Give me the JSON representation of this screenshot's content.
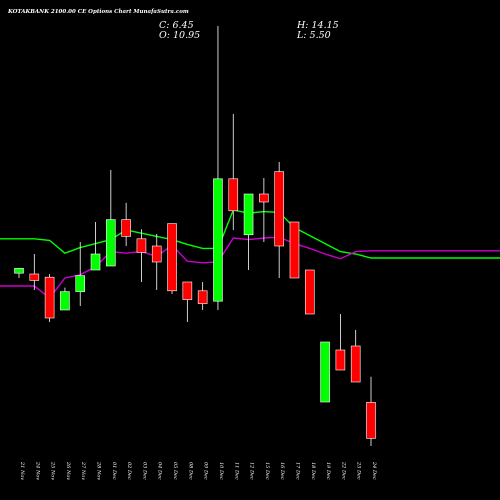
{
  "header": {
    "title": "KOTAKBANK 2100.00  CE Options  Chart MunafaSutra.com",
    "open": "O: 10.95",
    "high": "H: 14.15",
    "low": "L: 5.50",
    "close": "C: 6.45"
  },
  "colors": {
    "background": "#000000",
    "up": "#00ff00",
    "down": "#ff0000",
    "ema_fast": "#00ff00",
    "ema_slow": "#cc00cc",
    "wick": "#ffffff"
  },
  "chart_data": {
    "type": "candlestick",
    "title": "KOTAKBANK 2100.00  CE Options  Chart MunafaSutra.com",
    "categories": [
      "21 Nov",
      "24 Nov",
      "25 Nov",
      "26 Nov",
      "27 Nov",
      "28 Nov",
      "01 Dec",
      "02 Dec",
      "03 Dec",
      "04 Dec",
      "05 Dec",
      "08 Dec",
      "09 Dec",
      "10 Dec",
      "11 Dec",
      "12 Dec",
      "15 Dec",
      "16 Dec",
      "17 Dec",
      "18 Dec",
      "19 Dec",
      "22 Dec",
      "23 Dec",
      "24 Dec"
    ],
    "candles": [
      {
        "open": 27.1,
        "high": 27.7,
        "low": 26.5,
        "close": 27.7
      },
      {
        "open": 27.0,
        "high": 29.5,
        "low": 25.0,
        "close": 26.2
      },
      {
        "open": 26.6,
        "high": 27.0,
        "low": 21.0,
        "close": 21.5
      },
      {
        "open": 22.5,
        "high": 25.3,
        "low": 22.5,
        "close": 24.8
      },
      {
        "open": 24.8,
        "high": 31.0,
        "low": 23.0,
        "close": 26.8
      },
      {
        "open": 27.5,
        "high": 33.5,
        "low": 27.5,
        "close": 29.5
      },
      {
        "open": 28.0,
        "high": 40.0,
        "low": 28.0,
        "close": 33.8
      },
      {
        "open": 33.8,
        "high": 35.9,
        "low": 30.5,
        "close": 31.7
      },
      {
        "open": 31.4,
        "high": 32.6,
        "low": 26.0,
        "close": 29.7
      },
      {
        "open": 30.5,
        "high": 32.0,
        "low": 25.0,
        "close": 28.5
      },
      {
        "open": 33.3,
        "high": 33.3,
        "low": 24.5,
        "close": 24.9
      },
      {
        "open": 26.0,
        "high": 26.0,
        "low": 21.0,
        "close": 23.8
      },
      {
        "open": 24.9,
        "high": 26.0,
        "low": 22.5,
        "close": 23.3
      },
      {
        "open": 23.6,
        "high": 58.0,
        "low": 22.5,
        "close": 38.9
      },
      {
        "open": 38.9,
        "high": 47.0,
        "low": 32.5,
        "close": 34.9
      },
      {
        "open": 31.9,
        "high": 37.0,
        "low": 27.5,
        "close": 37.0
      },
      {
        "open": 37.0,
        "high": 39.0,
        "low": 31.0,
        "close": 36.0
      },
      {
        "open": 39.8,
        "high": 41.0,
        "low": 26.5,
        "close": 30.5
      },
      {
        "open": 33.5,
        "high": 33.5,
        "low": 26.5,
        "close": 26.5
      },
      {
        "open": 27.5,
        "high": 27.5,
        "low": 22.0,
        "close": 22.0
      },
      {
        "open": 11.0,
        "high": 18.5,
        "low": 11.0,
        "close": 18.5
      },
      {
        "open": 17.5,
        "high": 22.0,
        "low": 15.0,
        "close": 15.0
      },
      {
        "open": 18.0,
        "high": 20.0,
        "low": 13.5,
        "close": 13.5
      },
      {
        "open": 10.95,
        "high": 14.15,
        "low": 5.5,
        "close": 6.45
      }
    ],
    "series": [
      {
        "values": [
          31.4,
          31.4,
          31.2,
          29.6,
          30.3,
          30.8,
          31.3,
          32.5,
          32.1,
          31.7,
          31.3,
          30.7,
          30.2,
          30.2,
          35.0,
          34.6,
          34.8,
          34.7,
          32.8,
          31.8,
          30.8,
          29.8,
          29.5,
          29.0
        ]
      },
      {
        "values": [
          25.5,
          25.5,
          24.0,
          26.5,
          26.9,
          27.9,
          29.8,
          29.6,
          29.8,
          29.2,
          30.6,
          28.6,
          28.4,
          28.5,
          31.5,
          31.3,
          31.5,
          31.6,
          30.8,
          30.2,
          29.5,
          28.9,
          29.8,
          29.9
        ]
      }
    ],
    "ylim": [
      0,
      60
    ]
  }
}
